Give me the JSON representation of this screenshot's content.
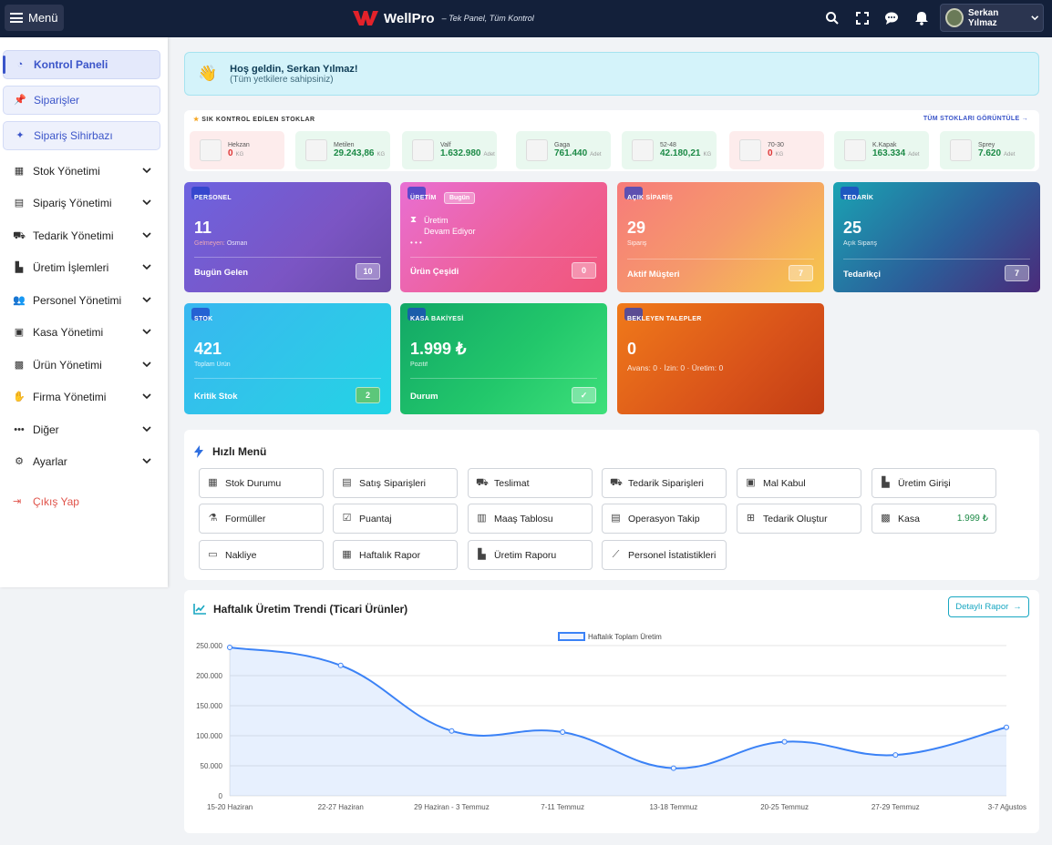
{
  "topbar": {
    "menu_label": "Menü",
    "brand_name": "WellPro",
    "brand_tagline": "– Tek Panel, Tüm Kontrol",
    "user_name": "Serkan Yılmaz",
    "icons": [
      "search-icon",
      "fullscreen-icon",
      "chat-icon",
      "bell-icon"
    ]
  },
  "sidebar": {
    "items": [
      {
        "label": "Kontrol Paneli",
        "icon": "gauge-icon",
        "state": "active"
      },
      {
        "label": "Siparişler",
        "icon": "pin-icon",
        "state": "pill"
      },
      {
        "label": "Sipariş Sihirbazı",
        "icon": "magic-wand-icon",
        "state": "pill"
      },
      {
        "label": "Stok Yönetimi",
        "icon": "warehouse-icon",
        "expandable": true
      },
      {
        "label": "Sipariş Yönetimi",
        "icon": "clipboard-icon",
        "expandable": true
      },
      {
        "label": "Tedarik Yönetimi",
        "icon": "dolly-icon",
        "expandable": true
      },
      {
        "label": "Üretim İşlemleri",
        "icon": "industry-icon",
        "expandable": true
      },
      {
        "label": "Personel Yönetimi",
        "icon": "users-icon",
        "expandable": true
      },
      {
        "label": "Kasa Yönetimi",
        "icon": "money-icon",
        "expandable": true
      },
      {
        "label": "Ürün Yönetimi",
        "icon": "boxes-icon",
        "expandable": true
      },
      {
        "label": "Firma Yönetimi",
        "icon": "handshake-icon",
        "expandable": true
      },
      {
        "label": "Diğer",
        "icon": "ellipsis-icon",
        "expandable": true
      },
      {
        "label": "Ayarlar",
        "icon": "users-cog-icon",
        "expandable": true
      }
    ],
    "logout_label": "Çıkış Yap"
  },
  "welcome": {
    "title": "Hoş geldin, Serkan Yılmaz!",
    "subtitle": "(Tüm yetkilere sahipsiniz)"
  },
  "stocks": {
    "heading": "SIK KONTROL EDİLEN STOKLAR",
    "link": "TÜM STOKLARI GÖRÜNTÜLE →",
    "items": [
      {
        "name": "Hekzan",
        "value": "0",
        "unit": "KG",
        "status": "low"
      },
      {
        "name": "Metilen",
        "value": "29.243,86",
        "unit": "KG",
        "status": "ok"
      },
      {
        "name": "Valf",
        "value": "1.632.980",
        "unit": "Adet",
        "status": "ok"
      },
      {
        "name": "Gaga",
        "value": "761.440",
        "unit": "Adet",
        "status": "ok"
      },
      {
        "name": "52-48",
        "value": "42.180,21",
        "unit": "KG",
        "status": "ok"
      },
      {
        "name": "70-30",
        "value": "0",
        "unit": "KG",
        "status": "low"
      },
      {
        "name": "K.Kapak",
        "value": "163.334",
        "unit": "Adet",
        "status": "ok"
      },
      {
        "name": "Sprey",
        "value": "7.620",
        "unit": "Adet",
        "status": "ok"
      }
    ]
  },
  "kpis": {
    "personel": {
      "label": "PERSONEL",
      "value": "11",
      "sub": "Gelmeyen: Osman",
      "sub_prefix": "Gelmeyen:",
      "sub_name": "Osman",
      "foot": "Bugün Gelen",
      "count": "10"
    },
    "uretim": {
      "label": "ÜRETİM",
      "badge": "Bugün",
      "line1": "Üretim",
      "line2": "Devam Ediyor",
      "dots": "• • •",
      "foot": "Ürün Çeşidi",
      "count": "0"
    },
    "acik": {
      "label": "AÇIK SİPARİŞ",
      "value": "29",
      "sub": "Sipariş",
      "foot": "Aktif Müşteri",
      "count": "7"
    },
    "tedarik": {
      "label": "TEDARİK",
      "value": "25",
      "sub": "Açık Sipariş",
      "foot": "Tedarikçi",
      "count": "7"
    },
    "stok": {
      "label": "STOK",
      "value": "421",
      "sub": "Toplam Ürün",
      "foot": "Kritik Stok",
      "count": "2"
    },
    "kasa": {
      "label": "KASA BAKİYESİ",
      "value": "1.999 ₺",
      "sub": "Pozitif",
      "foot": "Durum"
    },
    "bekleyen": {
      "label": "BEKLEYEN TALEPLER",
      "value": "0",
      "sub": "Avans: 0 · İzin: 0 · Üretim: 0"
    }
  },
  "quick_menu": {
    "title": "Hızlı Menü",
    "buttons": [
      {
        "label": "Stok Durumu",
        "icon": "warehouse-icon"
      },
      {
        "label": "Satış Siparişleri",
        "icon": "clipboard-icon"
      },
      {
        "label": "Teslimat",
        "icon": "truck-icon"
      },
      {
        "label": "Tedarik Siparişleri",
        "icon": "dolly-icon"
      },
      {
        "label": "Mal Kabul",
        "icon": "truck-loading-icon"
      },
      {
        "label": "Üretim Girişi",
        "icon": "industry-icon"
      },
      {
        "label": "Formüller",
        "icon": "flask-icon"
      },
      {
        "label": "Puantaj",
        "icon": "calendar-check-icon"
      },
      {
        "label": "Maaş Tablosu",
        "icon": "file-invoice-icon"
      },
      {
        "label": "Operasyon Takip",
        "icon": "clipboard-list-icon"
      },
      {
        "label": "Tedarik Oluştur",
        "icon": "plus-square-icon"
      },
      {
        "label": "Kasa",
        "icon": "cash-register-icon",
        "value": "1.999 ₺"
      },
      {
        "label": "Nakliye",
        "icon": "warehouse-door-icon"
      },
      {
        "label": "Haftalık Rapor",
        "icon": "calendar-icon"
      },
      {
        "label": "Üretim Raporu",
        "icon": "industry-icon"
      },
      {
        "label": "Personel İstatistikleri",
        "icon": "line-chart-icon"
      }
    ]
  },
  "chart_card": {
    "title": "Haftalık Üretim Trendi (Ticari Ürünler)",
    "button": "Detaylı Rapor"
  },
  "chart_data": {
    "type": "line",
    "title": "",
    "xlabel": "",
    "ylabel": "",
    "legend": "top",
    "grid": true,
    "ylim": [
      0,
      250000
    ],
    "yticks": [
      "0",
      "50.000",
      "100.000",
      "150.000",
      "200.000",
      "250.000"
    ],
    "categories": [
      "15-20 Haziran",
      "22-27 Haziran",
      "29 Haziran - 3 Temmuz",
      "7-11 Temmuz",
      "13-18 Temmuz",
      "20-25 Temmuz",
      "27-29 Temmuz",
      "3-7 Ağustos"
    ],
    "series": [
      {
        "name": "Haftalık Toplam Üretim",
        "values": [
          247000,
          217000,
          108000,
          106000,
          46000,
          90000,
          68000,
          114000
        ],
        "color": "#3b82f6"
      }
    ]
  }
}
